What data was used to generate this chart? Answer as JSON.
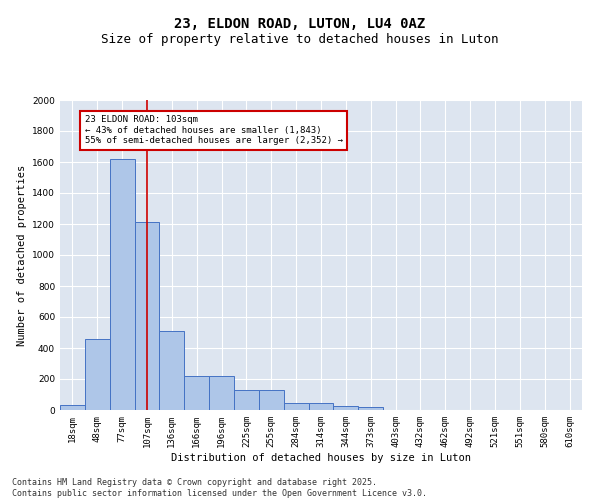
{
  "title": "23, ELDON ROAD, LUTON, LU4 0AZ",
  "subtitle": "Size of property relative to detached houses in Luton",
  "xlabel": "Distribution of detached houses by size in Luton",
  "ylabel": "Number of detached properties",
  "categories": [
    "18sqm",
    "48sqm",
    "77sqm",
    "107sqm",
    "136sqm",
    "166sqm",
    "196sqm",
    "225sqm",
    "255sqm",
    "284sqm",
    "314sqm",
    "344sqm",
    "373sqm",
    "403sqm",
    "432sqm",
    "462sqm",
    "492sqm",
    "521sqm",
    "551sqm",
    "580sqm",
    "610sqm"
  ],
  "values": [
    30,
    460,
    1620,
    1210,
    510,
    220,
    220,
    130,
    130,
    45,
    45,
    25,
    20,
    0,
    0,
    0,
    0,
    0,
    0,
    0,
    0
  ],
  "bar_color": "#aec6e8",
  "bar_edge_color": "#4472c4",
  "background_color": "#dde5f0",
  "grid_color": "#ffffff",
  "red_line_index": 3,
  "annotation_text": "23 ELDON ROAD: 103sqm\n← 43% of detached houses are smaller (1,843)\n55% of semi-detached houses are larger (2,352) →",
  "annotation_box_color": "#ffffff",
  "annotation_box_edge": "#cc0000",
  "ylim": [
    0,
    2000
  ],
  "yticks": [
    0,
    200,
    400,
    600,
    800,
    1000,
    1200,
    1400,
    1600,
    1800,
    2000
  ],
  "footer_line1": "Contains HM Land Registry data © Crown copyright and database right 2025.",
  "footer_line2": "Contains public sector information licensed under the Open Government Licence v3.0.",
  "title_fontsize": 10,
  "subtitle_fontsize": 9,
  "axis_label_fontsize": 7.5,
  "tick_fontsize": 6.5,
  "annotation_fontsize": 6.5,
  "footer_fontsize": 6
}
